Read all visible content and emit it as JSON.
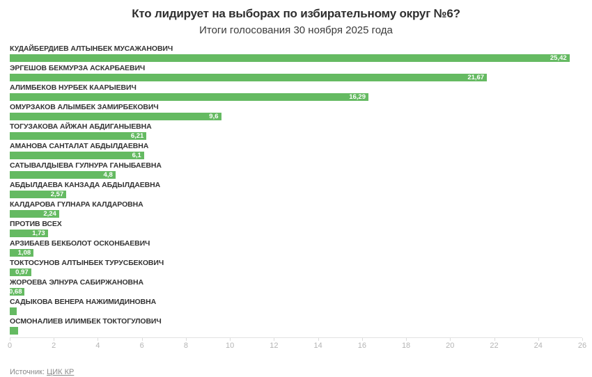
{
  "header": {
    "title": "Кто лидирует на выборах по избирательному округ №6?",
    "subtitle": "Итоги голосования 30 ноября 2025 года"
  },
  "chart_data": {
    "type": "bar",
    "orientation": "horizontal",
    "title": "Кто лидирует на выборах по избирательному округ №6?",
    "subtitle": "Итоги голосования 30 ноября 2025 года",
    "xlim": [
      0,
      26
    ],
    "x_ticks": [
      0,
      2,
      4,
      6,
      8,
      10,
      12,
      14,
      16,
      18,
      20,
      22,
      24,
      26
    ],
    "grid": false,
    "legend": false,
    "value_format": "comma-decimal",
    "rows": [
      {
        "name": "КУДАЙБЕРДИЕВ АЛТЫНБЕК МУСАЖАНОВИЧ",
        "value": 25.42,
        "label": "25,42"
      },
      {
        "name": "ЭРГЕШОВ БЕКМУРЗА АСКАРБАЕВИЧ",
        "value": 21.67,
        "label": "21,67"
      },
      {
        "name": "АЛИМБЕКОВ НУРБЕК КААРЫЕВИЧ",
        "value": 16.29,
        "label": "16,29"
      },
      {
        "name": "ОМУРЗАКОВ АЛЫМБЕК ЗАМИРБЕКОВИЧ",
        "value": 9.6,
        "label": "9,6"
      },
      {
        "name": "ТОГУЗАКОВА АЙЖАН АБДИГАНЫЕВНА",
        "value": 6.21,
        "label": "6,21"
      },
      {
        "name": "АМАНОВА САНТАЛАТ АБДЫЛДАЕВНА",
        "value": 6.1,
        "label": "6,1"
      },
      {
        "name": "САТЫВАЛДЫЕВА ГУЛНУРА ГАНЫБАЕВНА",
        "value": 4.8,
        "label": "4,8"
      },
      {
        "name": "АБДЫЛДАЕВА КАНЗАДА АБДЫЛДАЕВНА",
        "value": 2.57,
        "label": "2,57"
      },
      {
        "name": "КАЛДАРОВА ГҮЛНАРА КАЛДАРОВНА",
        "value": 2.24,
        "label": "2,24"
      },
      {
        "name": "ПРОТИВ ВСЕХ",
        "value": 1.73,
        "label": "1,73"
      },
      {
        "name": "АРЗИБАЕВ БЕКБОЛОТ ОСКОНБАЕВИЧ",
        "value": 1.08,
        "label": "1,08"
      },
      {
        "name": "ТОКТОСУНОВ АЛТЫНБЕК ТУРУСБЕКОВИЧ",
        "value": 0.97,
        "label": "0,97"
      },
      {
        "name": "ЖОРОЕВА ЭЛНУРА САБИРЖАНОВНА",
        "value": 0.68,
        "label": "0,68"
      },
      {
        "name": "САДЫКОВА ВЕНЕРА НАЖИМИДИНОВНА",
        "value": 0.32,
        "label": ""
      },
      {
        "name": "ОСМОНАЛИЕВ ИЛИМБЕК ТОКТОГУЛОВИЧ",
        "value": 0.37,
        "label": ""
      }
    ]
  },
  "footer": {
    "source_prefix": "Источник:",
    "source_link_label": "ЦИК КР"
  },
  "colors": {
    "bar": "#65ba62",
    "title": "#2f2f2f",
    "candidate_label": "#333333",
    "value_label": "#ffffff",
    "axis_line": "#e1e1e1",
    "tick_label": "#b4b4b4",
    "source": "#8a8a8a"
  }
}
